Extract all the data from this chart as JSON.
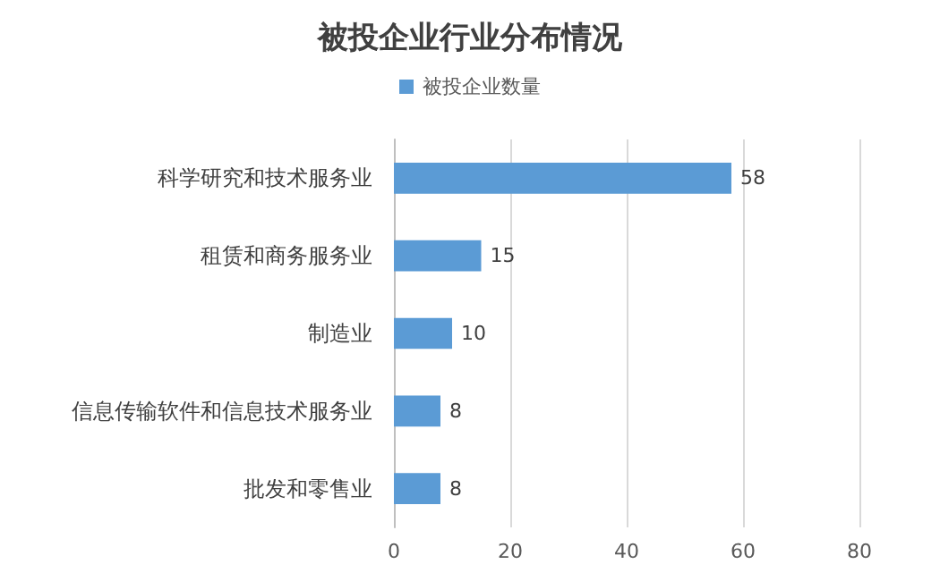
{
  "chart_data": {
    "type": "bar",
    "orientation": "horizontal",
    "title": "被投企业行业分布情况",
    "categories": [
      "科学研究和技术服务业",
      "租赁和商务服务业",
      "制造业",
      "信息传输软件和信息技术服务业",
      "批发和零售业"
    ],
    "series": [
      {
        "name": "被投企业数量",
        "color": "#5b9bd5",
        "values": [
          58,
          15,
          10,
          8,
          8
        ]
      }
    ],
    "xlim": [
      0,
      80
    ],
    "xticks": [
      0,
      20,
      40,
      60,
      80
    ],
    "grid": "x",
    "legend": "top",
    "data_labels": true
  }
}
